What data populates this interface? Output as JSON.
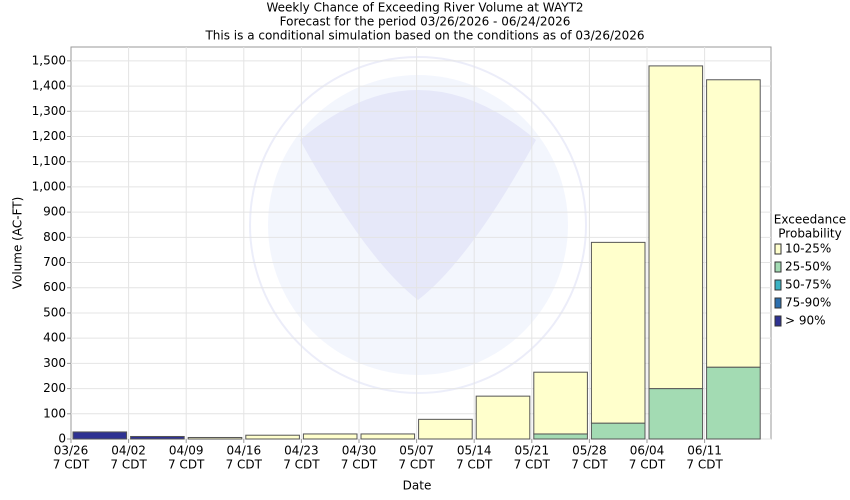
{
  "chart_data": {
    "type": "bar",
    "stacked": true,
    "title": [
      "Weekly Chance of Exceeding River Volume at WAYT2",
      "Forecast for the period 03/26/2026 - 06/24/2026",
      "This is a conditional simulation based on the conditions as of 03/26/2026"
    ],
    "x_label": "Date",
    "y_label": "Volume (AC-FT)",
    "categories": [
      [
        "03/26",
        "7 CDT"
      ],
      [
        "04/02",
        "7 CDT"
      ],
      [
        "04/09",
        "7 CDT"
      ],
      [
        "04/16",
        "7 CDT"
      ],
      [
        "04/23",
        "7 CDT"
      ],
      [
        "04/30",
        "7 CDT"
      ],
      [
        "05/07",
        "7 CDT"
      ],
      [
        "05/14",
        "7 CDT"
      ],
      [
        "05/21",
        "7 CDT"
      ],
      [
        "05/28",
        "7 CDT"
      ],
      [
        "06/04",
        "7 CDT"
      ],
      [
        "06/11",
        "7 CDT"
      ]
    ],
    "legend_title": [
      "Exceedance",
      "Probability"
    ],
    "series": [
      {
        "name": "10-25%",
        "color": "#ffffcc",
        "values": [
          null,
          null,
          6,
          15,
          20,
          20,
          78,
          170,
          245,
          717,
          1280,
          1140
        ]
      },
      {
        "name": "25-50%",
        "color": "#a3dbb3",
        "values": [
          null,
          null,
          null,
          null,
          null,
          null,
          null,
          null,
          20,
          63,
          200,
          285
        ]
      },
      {
        "name": "50-75%",
        "color": "#3bb3c3",
        "values": [
          null,
          null,
          null,
          null,
          null,
          null,
          null,
          null,
          null,
          null,
          null,
          null
        ]
      },
      {
        "name": "75-90%",
        "color": "#2c6fae",
        "values": [
          null,
          null,
          null,
          null,
          null,
          null,
          null,
          null,
          null,
          null,
          null,
          null
        ]
      },
      {
        "name": "> 90%",
        "color": "#2e3192",
        "values": [
          28,
          10,
          null,
          null,
          null,
          null,
          null,
          null,
          null,
          null,
          null,
          null
        ]
      }
    ],
    "ylim": [
      0,
      1555
    ],
    "yticks": [
      0,
      100,
      200,
      300,
      400,
      500,
      600,
      700,
      800,
      900,
      {
        "value": 1000,
        "label": "1,000"
      },
      {
        "value": 1100,
        "label": "1,100"
      },
      {
        "value": 1200,
        "label": "1,200"
      },
      {
        "value": 1300,
        "label": "1,300"
      },
      {
        "value": 1400,
        "label": "1,400"
      },
      {
        "value": 1500,
        "label": "1,500"
      }
    ],
    "grid": true
  }
}
